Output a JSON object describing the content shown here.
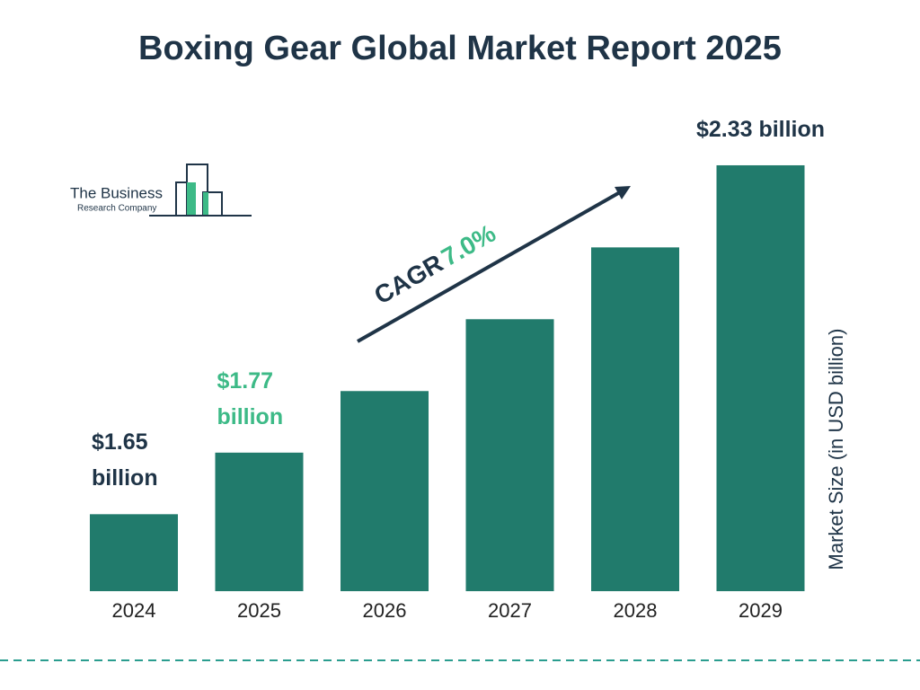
{
  "chart_data": {
    "type": "bar",
    "title": "Boxing Gear Global Market Report 2025",
    "brand": {
      "line1": "The Business",
      "line2": "Research Company"
    },
    "y_axis_label": "Market Size (in USD billion)",
    "categories": [
      "2024",
      "2025",
      "2026",
      "2027",
      "2028",
      "2029"
    ],
    "values": [
      1.65,
      1.77,
      1.89,
      2.03,
      2.17,
      2.33
    ],
    "value_labels": [
      "$1.65 billion",
      "$1.77 billion",
      null,
      null,
      null,
      "$2.33 billion"
    ],
    "value_label_colors": [
      "#1f3447",
      "#3dba87",
      null,
      null,
      null,
      "#1f3447"
    ],
    "color": "#217b6c",
    "ylim": [
      1.5,
      2.4
    ],
    "annotation": {
      "label": "CAGR",
      "value": "7.0%",
      "label_color": "#1f3447",
      "value_color": "#3dba87"
    }
  }
}
